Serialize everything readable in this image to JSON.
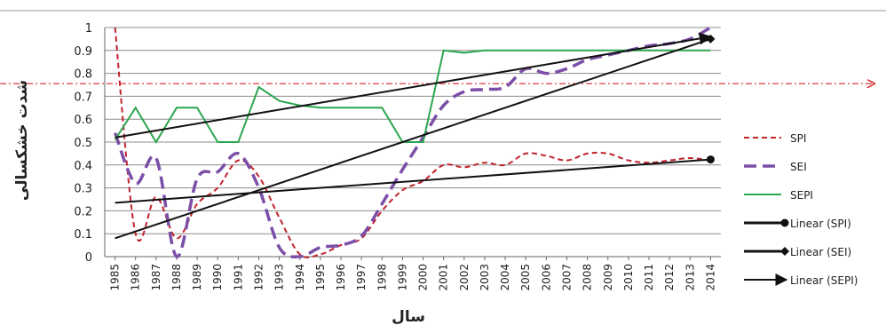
{
  "chart_data": {
    "type": "line",
    "xlabel": "سال",
    "ylabel": "شدت خشکسالی",
    "ylim": [
      0,
      1
    ],
    "yticks": [
      0,
      0.1,
      0.2,
      0.3,
      0.4,
      0.5,
      0.6,
      0.7,
      0.8,
      0.9,
      1
    ],
    "ytick_labels": [
      "0",
      "0.1",
      "0.2",
      "0.3",
      "0.4",
      "0.5",
      "0.6",
      "0.7",
      "0.8",
      "0.9",
      "1"
    ],
    "grid": "horizontal",
    "legend_position": "right",
    "x": [
      "1985",
      "1986",
      "1987",
      "1988",
      "1989",
      "1990",
      "1991",
      "1992",
      "1993",
      "1994",
      "1995",
      "1996",
      "1997",
      "1998",
      "1999",
      "2000",
      "2001",
      "2002",
      "2003",
      "2004",
      "2005",
      "2006",
      "2007",
      "2008",
      "2009",
      "2010",
      "2011",
      "2012",
      "2013",
      "2014"
    ],
    "series": [
      {
        "name": "SPI",
        "style": "dashed",
        "color": "#c0232c",
        "values": [
          1.0,
          0.1,
          0.26,
          0.08,
          0.23,
          0.3,
          0.42,
          0.35,
          0.17,
          0.01,
          0.01,
          0.05,
          0.08,
          0.2,
          0.29,
          0.33,
          0.4,
          0.39,
          0.41,
          0.4,
          0.45,
          0.44,
          0.42,
          0.45,
          0.45,
          0.42,
          0.41,
          0.42,
          0.43,
          0.42
        ]
      },
      {
        "name": "SEI",
        "style": "dashed-thick",
        "color": "#7b4ea7",
        "values": [
          0.54,
          0.32,
          0.43,
          0.0,
          0.34,
          0.37,
          0.45,
          0.3,
          0.04,
          0.0,
          0.04,
          0.05,
          0.09,
          0.23,
          0.38,
          0.52,
          0.66,
          0.72,
          0.73,
          0.74,
          0.82,
          0.8,
          0.82,
          0.86,
          0.88,
          0.9,
          0.92,
          0.93,
          0.95,
          1.0
        ]
      },
      {
        "name": "SEPI",
        "style": "solid",
        "color": "#2ca64f",
        "values": [
          0.51,
          0.65,
          0.5,
          0.65,
          0.65,
          0.5,
          0.5,
          0.74,
          0.68,
          0.66,
          0.65,
          0.65,
          0.65,
          0.65,
          0.5,
          0.5,
          0.9,
          0.89,
          0.9,
          0.9,
          0.9,
          0.9,
          0.9,
          0.9,
          0.9,
          0.9,
          0.9,
          0.9,
          0.9,
          0.9
        ]
      },
      {
        "name": "Linear (SPI)",
        "style": "trend",
        "marker": "circle",
        "color": "#111111",
        "values": [
          0.235,
          0.242,
          0.248,
          0.255,
          0.261,
          0.268,
          0.274,
          0.281,
          0.287,
          0.294,
          0.3,
          0.307,
          0.313,
          0.32,
          0.326,
          0.333,
          0.339,
          0.346,
          0.352,
          0.359,
          0.365,
          0.372,
          0.378,
          0.385,
          0.391,
          0.398,
          0.404,
          0.411,
          0.417,
          0.424
        ]
      },
      {
        "name": "Linear (SEI)",
        "style": "trend",
        "marker": "diamond",
        "color": "#111111",
        "values": [
          0.08,
          0.11,
          0.14,
          0.17,
          0.2,
          0.23,
          0.26,
          0.29,
          0.32,
          0.35,
          0.38,
          0.41,
          0.44,
          0.47,
          0.5,
          0.53,
          0.56,
          0.59,
          0.62,
          0.65,
          0.68,
          0.71,
          0.74,
          0.77,
          0.8,
          0.83,
          0.86,
          0.89,
          0.92,
          0.95
        ]
      },
      {
        "name": "Linear (SEPI)",
        "style": "trend",
        "marker": "arrow",
        "color": "#111111",
        "values": [
          0.52,
          0.535,
          0.55,
          0.565,
          0.58,
          0.595,
          0.61,
          0.625,
          0.64,
          0.655,
          0.67,
          0.685,
          0.7,
          0.715,
          0.73,
          0.745,
          0.76,
          0.775,
          0.79,
          0.805,
          0.82,
          0.835,
          0.85,
          0.865,
          0.88,
          0.895,
          0.91,
          0.925,
          0.94,
          0.96
        ]
      }
    ],
    "reference_line": {
      "value": 0.755,
      "color": "#d9262c",
      "style": "dash-dot",
      "arrow": "right"
    }
  }
}
